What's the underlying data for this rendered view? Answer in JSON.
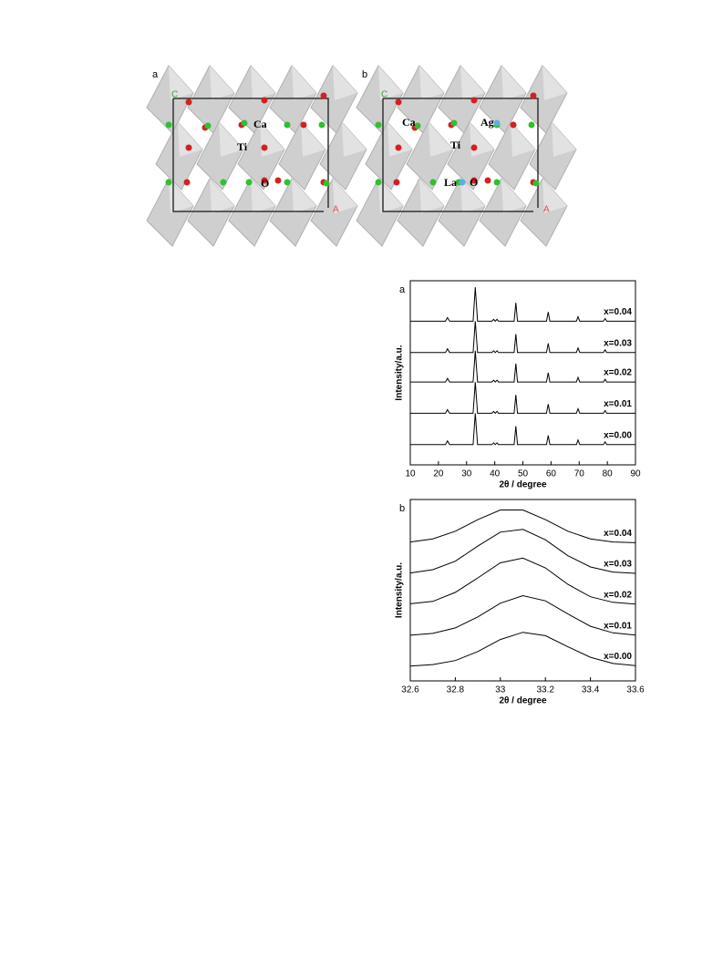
{
  "structures": [
    {
      "label": "a",
      "atoms": [
        "Ca",
        "Ti",
        "O"
      ],
      "axes": [
        "C",
        "A"
      ]
    },
    {
      "label": "b",
      "atoms": [
        "Ca",
        "Ag",
        "Ti",
        "La",
        "O"
      ],
      "axes": [
        "C",
        "A"
      ]
    }
  ],
  "chart_data": [
    {
      "type": "line",
      "label": "a",
      "xlabel": "2θ / degree",
      "ylabel": "Intensity/a.u.",
      "xlim": [
        10,
        90
      ],
      "xticks": [
        10,
        20,
        30,
        40,
        50,
        60,
        70,
        80,
        90
      ],
      "ylim": [
        0,
        100
      ],
      "color": "#000000",
      "x": [
        10,
        22.5,
        23.2,
        24,
        32.3,
        33.1,
        33.9,
        39,
        39.6,
        40.2,
        40.8,
        41.4,
        46.9,
        47.5,
        48.1,
        58.4,
        59,
        59.6,
        69,
        69.6,
        70.2,
        78.6,
        79.2,
        79.8,
        90
      ],
      "series": [
        {
          "name": "x=0.00",
          "values": [
            11,
            11,
            13,
            11,
            11,
            28,
            11,
            11,
            12,
            11,
            12,
            11,
            11,
            21,
            11,
            11,
            16,
            11,
            11,
            13.5,
            11,
            11,
            12.5,
            11,
            11
          ]
        },
        {
          "name": "x=0.01",
          "values": [
            28,
            28,
            30,
            28,
            28,
            45,
            28,
            28,
            29,
            28,
            29,
            28,
            28,
            38,
            28,
            28,
            33,
            28,
            28,
            30.5,
            28,
            28,
            29.5,
            28,
            28
          ]
        },
        {
          "name": "x=0.02",
          "values": [
            45,
            45,
            47,
            45,
            45,
            62,
            45,
            45,
            46,
            45,
            46,
            45,
            45,
            55,
            45,
            45,
            50,
            45,
            45,
            47.5,
            45,
            45,
            46.5,
            45,
            45
          ]
        },
        {
          "name": "x=0.03",
          "values": [
            61,
            61,
            63,
            61,
            61,
            78,
            61,
            61,
            62,
            61,
            62,
            61,
            61,
            71,
            61,
            61,
            66,
            61,
            61,
            63.5,
            61,
            61,
            62.5,
            61,
            61
          ]
        },
        {
          "name": "x=0.04",
          "values": [
            78,
            78,
            80,
            78,
            78,
            96.5,
            78,
            78,
            79,
            78,
            79,
            78,
            78,
            88,
            78,
            78,
            83,
            78,
            78,
            80.5,
            78,
            78,
            79.5,
            78,
            78
          ]
        }
      ]
    },
    {
      "type": "line",
      "label": "b",
      "xlabel": "2θ / degree",
      "ylabel": "Intensity/a.u.",
      "xlim": [
        32.6,
        33.6
      ],
      "xticks": [
        32.6,
        32.8,
        33.0,
        33.2,
        33.4,
        33.6
      ],
      "ylim": [
        0,
        100
      ],
      "color": "#000000",
      "x": [
        32.6,
        32.7,
        32.8,
        32.9,
        33.0,
        33.1,
        33.2,
        33.3,
        33.4,
        33.5,
        33.6
      ],
      "series": [
        {
          "name": "x=0.00",
          "values": [
            8.2,
            9.0,
            11.2,
            16.2,
            22.8,
            26.8,
            24.9,
            18.8,
            13.0,
            9.6,
            8.4
          ]
        },
        {
          "name": "x=0.01",
          "values": [
            25.2,
            26.2,
            29.2,
            35.3,
            42.8,
            47.0,
            44.1,
            36.9,
            30.1,
            26.5,
            25.3
          ]
        },
        {
          "name": "x=0.02",
          "values": [
            42.5,
            43.8,
            48.8,
            56.8,
            65.1,
            67.7,
            62.3,
            53.2,
            46.4,
            43.3,
            42.3
          ]
        },
        {
          "name": "x=0.03",
          "values": [
            59.5,
            61.3,
            66.0,
            74.3,
            82.0,
            83.5,
            77.8,
            69.0,
            62.8,
            60.0,
            59.3
          ]
        },
        {
          "name": "x=0.04",
          "values": [
            76.6,
            78.3,
            82.5,
            88.9,
            94.2,
            94.2,
            88.9,
            82.5,
            78.3,
            76.6,
            76.2
          ]
        }
      ]
    }
  ]
}
